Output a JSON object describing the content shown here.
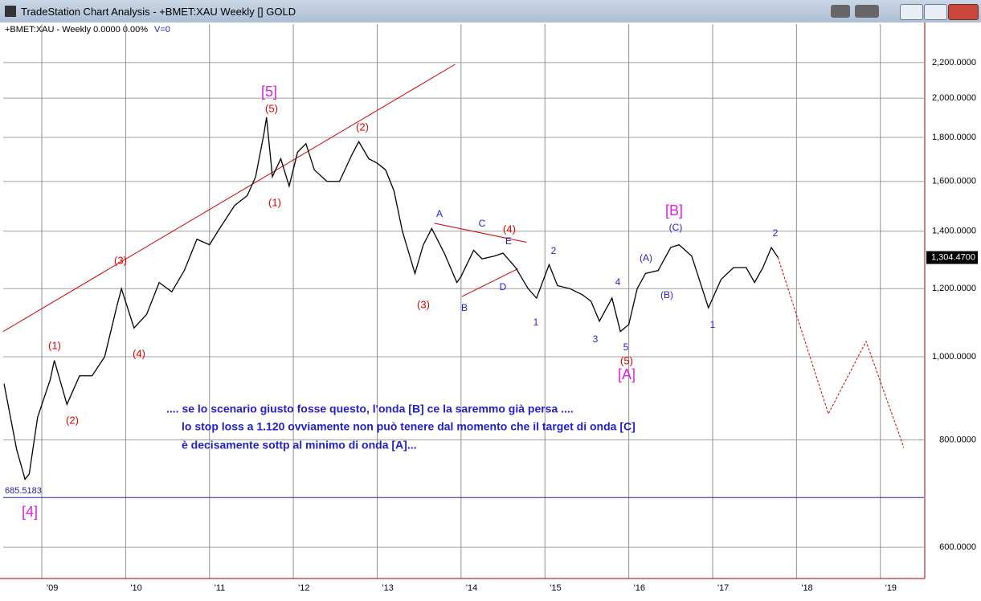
{
  "window": {
    "title": "TradeStation Chart Analysis - +BMET:XAU Weekly [] GOLD"
  },
  "chart_data": {
    "type": "line",
    "info": "+BMET:XAU - Weekly  0.0000  0.00%",
    "volume": "V=0",
    "log_y": true,
    "grid": true,
    "xlim": [
      2008.54,
      2019.52
    ],
    "xticks": [
      {
        "value": 2009,
        "label": "'09"
      },
      {
        "value": 2010,
        "label": "'10"
      },
      {
        "value": 2011,
        "label": "'11"
      },
      {
        "value": 2012,
        "label": "'12"
      },
      {
        "value": 2013,
        "label": "'13"
      },
      {
        "value": 2014,
        "label": "'14"
      },
      {
        "value": 2015,
        "label": "'15"
      },
      {
        "value": 2016,
        "label": "'16"
      },
      {
        "value": 2017,
        "label": "'17"
      },
      {
        "value": 2018,
        "label": "'18"
      },
      {
        "value": 2019,
        "label": "'19"
      }
    ],
    "ylim": [
      551.8,
      2439
    ],
    "yticks": [
      {
        "value": 600,
        "label": "600.0000"
      },
      {
        "value": 800,
        "label": "800.0000"
      },
      {
        "value": 1000,
        "label": "1,000.0000"
      },
      {
        "value": 1200,
        "label": "1,200.0000"
      },
      {
        "value": 1400,
        "label": "1,400.0000"
      },
      {
        "value": 1600,
        "label": "1,600.0000"
      },
      {
        "value": 1800,
        "label": "1,800.0000"
      },
      {
        "value": 2000,
        "label": "2,000.0000"
      },
      {
        "value": 2200,
        "label": "2,200.0000"
      }
    ],
    "series": [
      {
        "color": "#000000",
        "dash": false,
        "x": [
          2008.55,
          2008.7,
          2008.8,
          2008.85,
          2008.95,
          2009.1,
          2009.15,
          2009.3,
          2009.45,
          2009.6,
          2009.75,
          2009.9,
          2009.95,
          2010.1,
          2010.25,
          2010.4,
          2010.55,
          2010.7,
          2010.85,
          2011.0,
          2011.1,
          2011.3,
          2011.45,
          2011.55,
          2011.65,
          2011.68,
          2011.75,
          2011.85,
          2011.95,
          2012.05,
          2012.15,
          2012.25,
          2012.4,
          2012.55,
          2012.7,
          2012.78,
          2012.9,
          2013.0,
          2013.1,
          2013.2,
          2013.3,
          2013.45,
          2013.55,
          2013.65,
          2013.8,
          2013.95,
          2014.0,
          2014.15,
          2014.25,
          2014.4,
          2014.5,
          2014.65,
          2014.8,
          2014.9,
          2015.05,
          2015.15,
          2015.3,
          2015.45,
          2015.55,
          2015.65,
          2015.8,
          2015.9,
          2016.0,
          2016.1,
          2016.2,
          2016.35,
          2016.5,
          2016.6,
          2016.75,
          2016.9,
          2016.95,
          2017.1,
          2017.25,
          2017.4,
          2017.5,
          2017.6,
          2017.7,
          2017.78
        ],
        "values": [
          930,
          780,
          720,
          730,
          850,
          940,
          990,
          880,
          950,
          950,
          1000,
          1150,
          1200,
          1080,
          1120,
          1220,
          1190,
          1260,
          1370,
          1350,
          1400,
          1500,
          1540,
          1620,
          1820,
          1900,
          1620,
          1700,
          1580,
          1730,
          1770,
          1650,
          1600,
          1600,
          1720,
          1780,
          1700,
          1680,
          1650,
          1560,
          1400,
          1250,
          1350,
          1410,
          1320,
          1220,
          1240,
          1330,
          1300,
          1310,
          1320,
          1270,
          1200,
          1170,
          1280,
          1210,
          1200,
          1180,
          1160,
          1100,
          1170,
          1070,
          1090,
          1200,
          1250,
          1260,
          1340,
          1350,
          1310,
          1180,
          1140,
          1230,
          1270,
          1270,
          1220,
          1270,
          1340,
          1304.47
        ]
      },
      {
        "color": "#d00000",
        "dash": true,
        "x": [
          2017.78,
          2018.38,
          2018.83,
          2019.28
        ],
        "values": [
          1304.47,
          858,
          1042,
          784
        ]
      }
    ],
    "trendlines": [
      {
        "color": "#d00000",
        "x": [
          2008.54,
          2013.93
        ],
        "values": [
          1070,
          2190
        ]
      },
      {
        "color": "#d00000",
        "x": [
          2013.68,
          2014.78
        ],
        "values": [
          1430,
          1359
        ]
      },
      {
        "color": "#d00000",
        "x": [
          2014.01,
          2014.68
        ],
        "values": [
          1175,
          1266
        ]
      }
    ],
    "low_line": {
      "value": 685.5183,
      "label": "685.5183",
      "color": "#2020a0"
    },
    "last_price": {
      "value": 1304.47,
      "label": "1,304.4700"
    },
    "annotations": [
      {
        "text": "[5]",
        "color": "#e020e0"
      },
      {
        "text": "(5)",
        "color": "#e00000"
      },
      {
        "text": "(1)",
        "color": "#e00000"
      },
      {
        "text": "(2)",
        "color": "#e00000"
      },
      {
        "text": "(3)",
        "color": "#e00000"
      },
      {
        "text": "(4)",
        "color": "#e00000"
      },
      {
        "text": "(1)",
        "color": "#e00000"
      },
      {
        "text": "(2)",
        "color": "#e00000"
      },
      {
        "text": "(3)",
        "color": "#e00000"
      },
      {
        "text": "(4)",
        "color": "#e00000"
      },
      {
        "text": "A",
        "color": "#1f1fd0"
      },
      {
        "text": "B",
        "color": "#1f1fd0"
      },
      {
        "text": "C",
        "color": "#1f1fd0"
      },
      {
        "text": "D",
        "color": "#1f1fd0"
      },
      {
        "text": "E",
        "color": "#1f1fd0"
      },
      {
        "text": "1",
        "color": "#1f1fd0"
      },
      {
        "text": "2",
        "color": "#1f1fd0"
      },
      {
        "text": "3",
        "color": "#1f1fd0"
      },
      {
        "text": "4",
        "color": "#1f1fd0"
      },
      {
        "text": "5",
        "color": "#1f1fd0"
      },
      {
        "text": "(5)",
        "color": "#e00000"
      },
      {
        "text": "[A]",
        "color": "#e020e0"
      },
      {
        "text": "[B]",
        "color": "#e020e0"
      },
      {
        "text": "(C)",
        "color": "#1f1fd0"
      },
      {
        "text": "(A)",
        "color": "#1f1fd0"
      },
      {
        "text": "(B)",
        "color": "#1f1fd0"
      },
      {
        "text": "1",
        "color": "#1f1fd0"
      },
      {
        "text": "2",
        "color": "#1f1fd0"
      },
      {
        "text": "[4]",
        "color": "#e020e0"
      }
    ],
    "comment": [
      ".... se lo scenario giusto fosse questo, l'onda [B] ce la saremmo già persa ....",
      "lo stop loss a 1.120 ovviamente non può tenere dal momento che il target di onda [C]",
      "è decisamente sottp al minimo di onda [A]..."
    ]
  }
}
